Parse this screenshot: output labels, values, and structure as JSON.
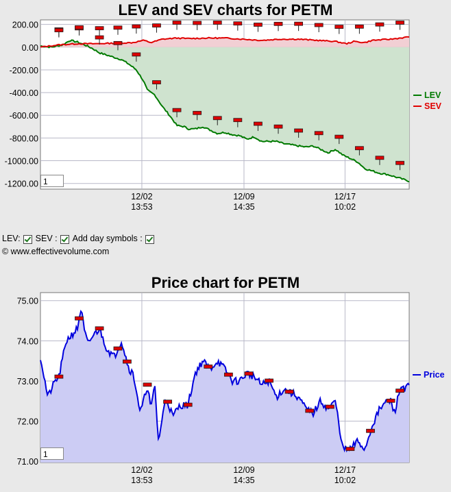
{
  "lev_sev_title": "LEV and SEV charts for PETM",
  "price_title": "Price chart for PETM",
  "controls": {
    "lev_label": "LEV:",
    "sev_label": "SEV :",
    "day_symbols_label": "Add day symbols :"
  },
  "copyright": "© www.effectivevolume.com",
  "zoom_value": "1",
  "colors": {
    "lev": "#007a00",
    "sev": "#e00000",
    "price": "#0000dd",
    "lev_fill": "#cfe3cf",
    "sev_fill": "#f2cfd4",
    "price_fill": "#ccccf4",
    "marker": "#dd0000"
  },
  "chart_data": [
    {
      "type": "line",
      "title": "LEV and SEV charts for PETM",
      "x_ticks": [
        {
          "date": "12/02",
          "time": "13:53"
        },
        {
          "date": "12/09",
          "time": "14:35"
        },
        {
          "date": "12/17",
          "time": "10:02"
        }
      ],
      "ylim": [
        -1250,
        240
      ],
      "y_ticks": [
        "200.00",
        "0.00",
        "-200.00",
        "-400.00",
        "-600.00",
        "-800.00",
        "-1000.00",
        "-1200.00"
      ],
      "y_tick_values": [
        200,
        0,
        -200,
        -400,
        -600,
        -800,
        -1000,
        -1200
      ],
      "legend": [
        "LEV",
        "SEV"
      ],
      "grid": true,
      "series": [
        {
          "name": "LEV",
          "x": [
            0,
            0.03,
            0.06,
            0.08,
            0.1,
            0.12,
            0.14,
            0.16,
            0.18,
            0.2,
            0.22,
            0.24,
            0.26,
            0.28,
            0.29,
            0.31,
            0.33,
            0.35,
            0.37,
            0.39,
            0.4,
            0.42,
            0.44,
            0.46,
            0.48,
            0.5,
            0.52,
            0.54,
            0.56,
            0.58,
            0.6,
            0.62,
            0.64,
            0.66,
            0.68,
            0.7,
            0.72,
            0.74,
            0.76,
            0.78,
            0.8,
            0.82,
            0.84,
            0.86,
            0.88,
            0.9,
            0.92,
            0.94,
            0.96,
            0.98,
            1.0
          ],
          "values": [
            10,
            0,
            20,
            60,
            45,
            20,
            -10,
            -50,
            -70,
            -90,
            -110,
            -150,
            -200,
            -300,
            -380,
            -420,
            -520,
            -600,
            -690,
            -700,
            -720,
            -720,
            -700,
            -730,
            -760,
            -750,
            -770,
            -780,
            -810,
            -790,
            -830,
            -830,
            -830,
            -850,
            -860,
            -870,
            -880,
            -870,
            -900,
            -930,
            -900,
            -950,
            -980,
            -1010,
            -1070,
            -1090,
            -1110,
            -1120,
            -1140,
            -1160,
            -1180
          ]
        },
        {
          "name": "SEV",
          "x": [
            0,
            0.05,
            0.1,
            0.15,
            0.2,
            0.25,
            0.28,
            0.3,
            0.33,
            0.37,
            0.4,
            0.45,
            0.5,
            0.55,
            0.6,
            0.65,
            0.7,
            0.75,
            0.8,
            0.83,
            0.85,
            0.88,
            0.9,
            0.95,
            1.0
          ],
          "values": [
            0,
            20,
            30,
            30,
            35,
            40,
            60,
            40,
            70,
            80,
            75,
            80,
            80,
            70,
            60,
            70,
            70,
            60,
            50,
            30,
            50,
            40,
            60,
            70,
            90
          ]
        }
      ]
    },
    {
      "type": "line",
      "title": "Price chart for PETM",
      "x_ticks": [
        {
          "date": "12/02",
          "time": "13:53"
        },
        {
          "date": "12/09",
          "time": "14:35"
        },
        {
          "date": "12/17",
          "time": "10:02"
        }
      ],
      "ylim": [
        70.97,
        75.2
      ],
      "y_ticks": [
        "75.00",
        "74.00",
        "73.00",
        "72.00",
        "71.00"
      ],
      "y_tick_values": [
        75,
        74,
        73,
        72,
        71
      ],
      "legend": [
        "Price"
      ],
      "grid": true,
      "series": [
        {
          "name": "Price",
          "x": [
            0,
            0.02,
            0.04,
            0.05,
            0.07,
            0.09,
            0.1,
            0.11,
            0.12,
            0.13,
            0.14,
            0.16,
            0.18,
            0.2,
            0.22,
            0.24,
            0.25,
            0.26,
            0.27,
            0.28,
            0.29,
            0.3,
            0.31,
            0.32,
            0.34,
            0.36,
            0.37,
            0.38,
            0.4,
            0.42,
            0.44,
            0.46,
            0.48,
            0.5,
            0.52,
            0.54,
            0.56,
            0.58,
            0.6,
            0.62,
            0.64,
            0.66,
            0.68,
            0.7,
            0.72,
            0.74,
            0.76,
            0.78,
            0.8,
            0.82,
            0.84,
            0.86,
            0.88,
            0.9,
            0.92,
            0.94,
            0.95,
            0.96,
            0.97,
            0.98,
            0.99,
            1.0
          ],
          "values": [
            73.6,
            72.6,
            73.0,
            73.1,
            74.0,
            74.2,
            74.3,
            74.8,
            74.2,
            73.9,
            74.1,
            74.3,
            73.8,
            73.6,
            74.0,
            73.3,
            73.2,
            72.8,
            72.2,
            72.5,
            72.9,
            72.3,
            72.9,
            71.5,
            72.6,
            72.1,
            72.3,
            72.4,
            72.4,
            73.2,
            73.5,
            73.3,
            73.5,
            73.3,
            73.0,
            73.0,
            73.2,
            73.1,
            72.9,
            73.0,
            72.6,
            72.8,
            72.7,
            72.6,
            72.3,
            72.2,
            72.5,
            72.3,
            72.5,
            71.3,
            71.3,
            71.5,
            71.3,
            71.9,
            72.3,
            72.5,
            72.5,
            72.2,
            72.6,
            72.9,
            72.8,
            72.9
          ]
        }
      ]
    }
  ]
}
